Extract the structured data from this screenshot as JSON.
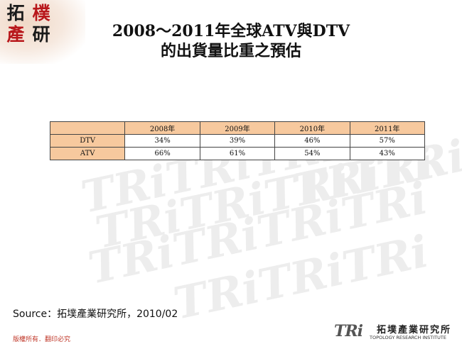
{
  "corner_logo": {
    "chars": [
      "拓",
      "樸",
      "產",
      "研"
    ]
  },
  "title": {
    "line1": "2008～2011年全球ATV與DTV",
    "line2": "的出貨量比重之預估"
  },
  "table": {
    "headers": [
      "",
      "2008年",
      "2009年",
      "2010年",
      "2011年"
    ],
    "rows": [
      {
        "label": "DTV",
        "values": [
          "34%",
          "39%",
          "46%",
          "57%"
        ]
      },
      {
        "label": "ATV",
        "values": [
          "66%",
          "61%",
          "54%",
          "43%"
        ]
      }
    ]
  },
  "source": "Source：拓墣產業研究所，2010/02",
  "copyright": "版權所有．翻印必究",
  "brand": {
    "mark": "TRi",
    "name_cn": "拓墣產業研究所",
    "name_en": "TOPOLOGY RESEARCH INSTITUTE"
  },
  "colors": {
    "table_header_fill": "#f7c99e",
    "accent_red": "#b8171b",
    "watermark": "#ececec"
  }
}
